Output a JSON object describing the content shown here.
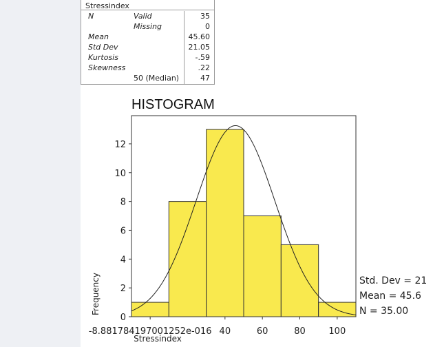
{
  "stats_table": {
    "title": "Stressindex",
    "rows": [
      {
        "label": "N",
        "sub": "Valid",
        "value": "35"
      },
      {
        "label": "",
        "sub": "Missing",
        "value": "0"
      },
      {
        "label": "Mean",
        "sub": "",
        "value": "45.60"
      },
      {
        "label": "Std Dev",
        "sub": "",
        "value": "21.05"
      },
      {
        "label": "Kurtosis",
        "sub": "",
        "value": "-.59"
      },
      {
        "label": "Skewness",
        "sub": "",
        "value": ".22"
      },
      {
        "label": "",
        "sub": "50 (Median)",
        "value": "47"
      }
    ]
  },
  "chart_data": {
    "type": "bar",
    "title": "HISTOGRAM",
    "xlabel": "Stressindex",
    "ylabel": "Frequency",
    "bins": [
      {
        "from": -10,
        "to": 10,
        "value": 1
      },
      {
        "from": 10,
        "to": 30,
        "value": 8
      },
      {
        "from": 30,
        "to": 50,
        "value": 13
      },
      {
        "from": 50,
        "to": 70,
        "value": 7
      },
      {
        "from": 70,
        "to": 90,
        "value": 5
      },
      {
        "from": 90,
        "to": 110,
        "value": 1
      }
    ],
    "x_ticks": [
      {
        "value": 0,
        "label": "-8.881784197001252e-016"
      },
      {
        "value": 40,
        "label": "40"
      },
      {
        "value": 60,
        "label": "60"
      },
      {
        "value": 80,
        "label": "80"
      },
      {
        "value": 100,
        "label": "100"
      }
    ],
    "y_ticks": [
      0,
      2,
      4,
      6,
      8,
      10,
      12
    ],
    "xlim": [
      -10,
      110
    ],
    "ylim": [
      0,
      14
    ],
    "normal_curve": {
      "mean": 45.6,
      "std": 21.05,
      "n": 35,
      "bin_width": 20
    },
    "legend": [
      "Std. Dev = 21",
      "Mean = 45.6",
      "N = 35.00"
    ],
    "bar_color": "#f9e94e",
    "bar_stroke": "#333333"
  }
}
